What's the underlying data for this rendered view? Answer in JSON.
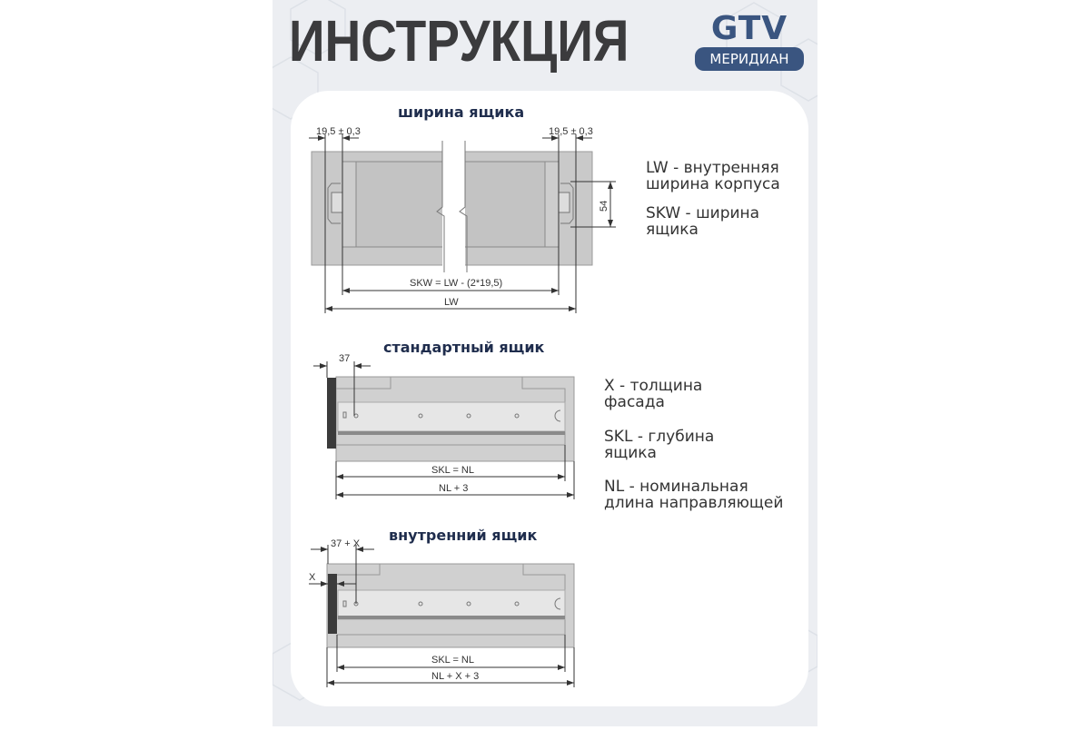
{
  "title": "ИНСТРУКЦИЯ",
  "logo": {
    "brand": "GTV",
    "sub": "МЕРИДИАН",
    "color": "#3a5580"
  },
  "section1": {
    "heading": "ширина ящика",
    "dim_left": "19,5 ± 0,3",
    "dim_right": "19,5 ± 0,3",
    "dim_height": "54",
    "dim_skw": "SKW = LW - (2*19,5)",
    "dim_lw": "LW",
    "legend": [
      "LW - внутренняя",
      "ширина корпуса",
      "SKW - ширина",
      "ящика"
    ]
  },
  "section2": {
    "heading": "стандартный ящик",
    "dim_offset": "37",
    "dim_skl": "SKL = NL",
    "dim_total": "NL + 3",
    "legend": [
      "X - толщина",
      "фасада",
      "SKL - глубина",
      "ящика",
      "NL - номинальная",
      "длина направляющей"
    ]
  },
  "section3": {
    "heading": "внутренний ящик",
    "dim_offset": "37 + X",
    "dim_x": "X",
    "dim_skl": "SKL = NL",
    "dim_total": "NL + X + 3"
  }
}
